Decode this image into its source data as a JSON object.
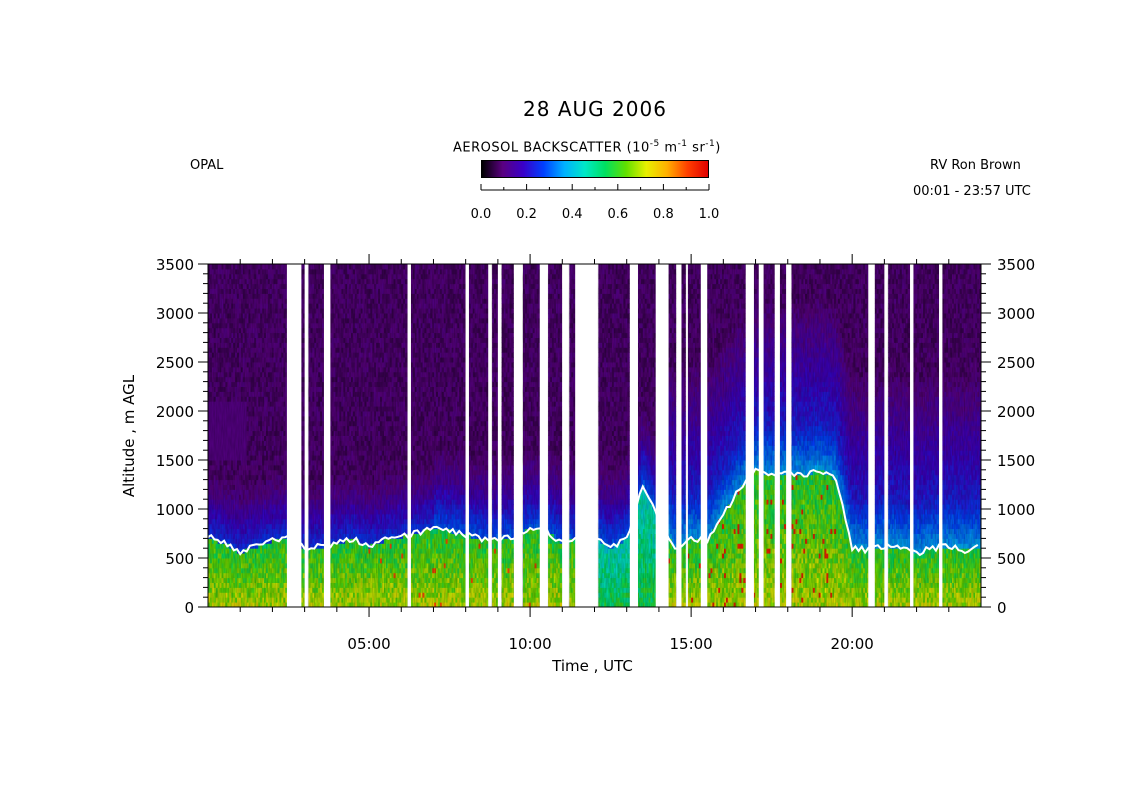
{
  "header": {
    "title": "28 AUG 2006",
    "site": "OPAL",
    "ship": "RV Ron Brown",
    "time_range": "00:01 - 23:57 UTC"
  },
  "colorbar": {
    "label_main": "AEROSOL BACKSCATTER (10",
    "label_exp1": "-5",
    "label_mid": " m",
    "label_exp2": "-1",
    "label_mid2": " sr",
    "label_exp3": "-1",
    "label_end": ")",
    "ticks": [
      "0.0",
      "0.2",
      "0.4",
      "0.6",
      "0.8",
      "1.0"
    ],
    "tick_values": [
      0.0,
      0.2,
      0.4,
      0.6,
      0.8,
      1.0
    ],
    "colors": [
      "#000000",
      "#5a0080",
      "#3a00c8",
      "#0040ff",
      "#00b0ff",
      "#00e8c8",
      "#00e060",
      "#60e000",
      "#e8f000",
      "#ffb000",
      "#ff4000",
      "#e00000"
    ]
  },
  "chart_data": {
    "type": "heatmap",
    "title": "28 AUG 2006",
    "xlabel": "Time , UTC",
    "ylabel": "Altitude , m AGL",
    "xlim": [
      0,
      24
    ],
    "ylim": [
      0,
      3500
    ],
    "x_ticks": [
      5,
      10,
      15,
      20
    ],
    "x_tick_labels": [
      "05:00",
      "10:00",
      "15:00",
      "20:00"
    ],
    "y_ticks": [
      0,
      500,
      1000,
      1500,
      2000,
      2500,
      3000,
      3500
    ],
    "y_tick_labels": [
      "0",
      "500",
      "1000",
      "1500",
      "2000",
      "2500",
      "3000",
      "3500"
    ],
    "z_label": "AEROSOL BACKSCATTER (10^-5 m^-1 sr^-1)",
    "z_range": [
      0.0,
      1.0
    ],
    "data_gaps_utc": [
      [
        2.45,
        2.9
      ],
      [
        3.0,
        3.1
      ],
      [
        3.6,
        3.8
      ],
      [
        6.2,
        6.3
      ],
      [
        8.0,
        8.1
      ],
      [
        8.7,
        8.8
      ],
      [
        9.0,
        9.1
      ],
      [
        9.5,
        9.75
      ],
      [
        10.3,
        10.55
      ],
      [
        11.0,
        11.2
      ],
      [
        11.4,
        12.1
      ],
      [
        13.1,
        13.35
      ],
      [
        13.9,
        14.3
      ],
      [
        14.55,
        14.7
      ],
      [
        14.85,
        14.9
      ],
      [
        15.3,
        15.5
      ],
      [
        16.7,
        16.95
      ],
      [
        17.1,
        17.25
      ],
      [
        17.6,
        17.75
      ],
      [
        17.95,
        18.1
      ],
      [
        20.5,
        20.7
      ],
      [
        21.0,
        21.1
      ],
      [
        21.8,
        21.9
      ],
      [
        22.7,
        22.8
      ]
    ],
    "boundary_layer_height_m": {
      "x": [
        0.0,
        0.5,
        1.0,
        1.5,
        2.0,
        2.5,
        3.0,
        3.5,
        4.0,
        4.5,
        5.0,
        5.5,
        6.0,
        6.5,
        7.0,
        7.5,
        8.0,
        8.5,
        9.0,
        9.5,
        10.0,
        10.5,
        11.0,
        11.5,
        12.0,
        12.5,
        13.0,
        13.5,
        14.0,
        14.5,
        15.0,
        15.5,
        16.0,
        16.5,
        17.0,
        17.5,
        18.0,
        18.5,
        19.0,
        19.5,
        20.0,
        20.5,
        21.0,
        21.5,
        22.0,
        22.5,
        23.0,
        23.5,
        24.0
      ],
      "y": [
        720,
        650,
        560,
        620,
        680,
        720,
        600,
        620,
        650,
        700,
        620,
        680,
        720,
        760,
        800,
        780,
        740,
        700,
        680,
        720,
        800,
        780,
        650,
        700,
        720,
        600,
        700,
        1250,
        900,
        600,
        700,
        680,
        950,
        1200,
        1400,
        1350,
        1380,
        1350,
        1400,
        1300,
        600,
        580,
        620,
        600,
        550,
        600,
        620,
        580,
        620
      ]
    }
  }
}
